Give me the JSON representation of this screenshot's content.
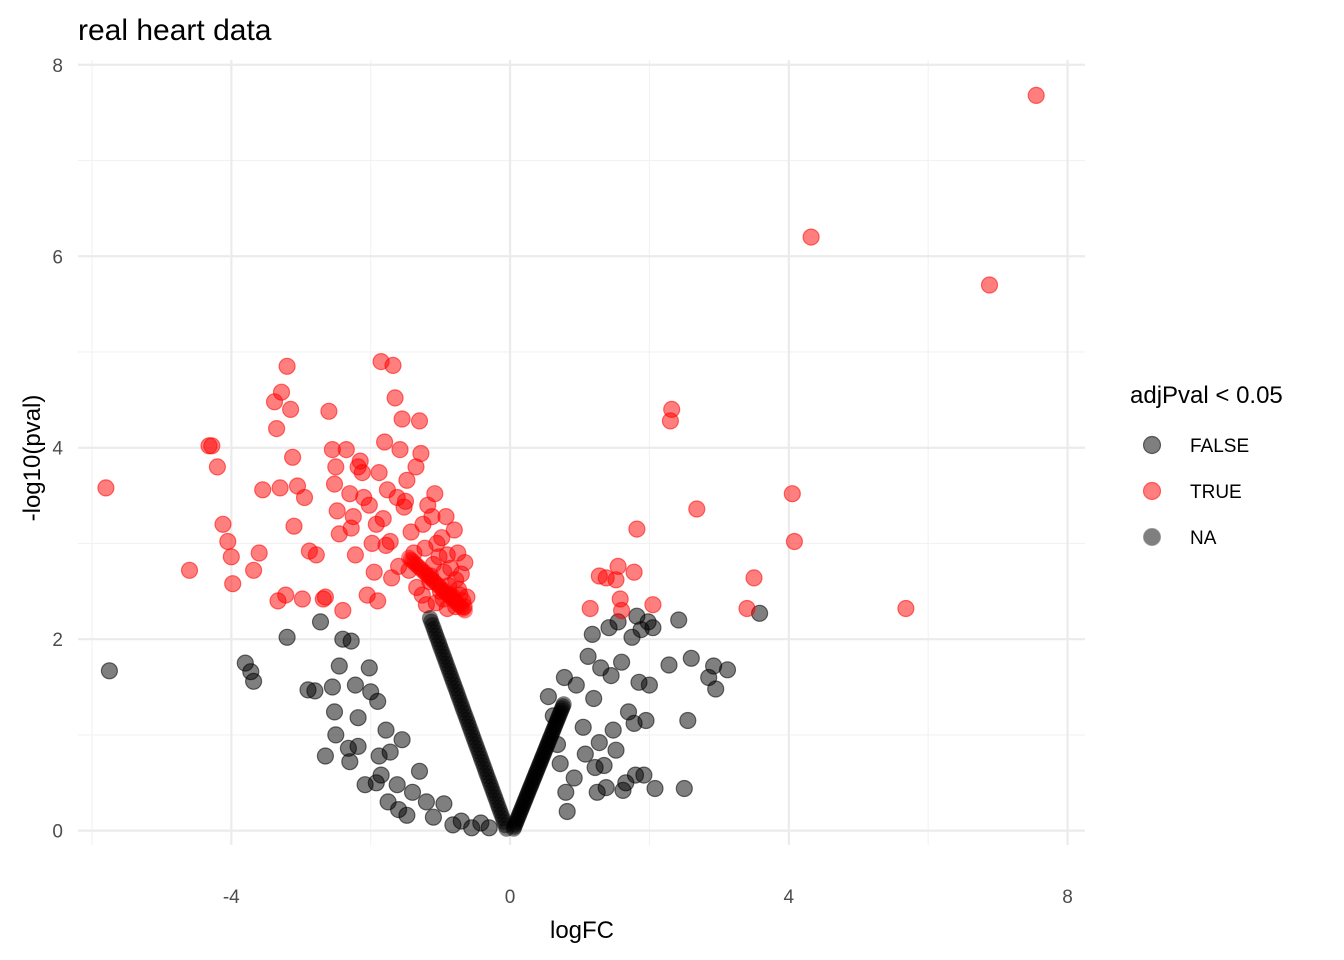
{
  "chart_data": {
    "type": "scatter",
    "title": "real heart data",
    "xlabel": "logFC",
    "ylabel": "-log10(pval)",
    "xlim": [
      -6.2,
      8.25
    ],
    "ylim": [
      -0.15,
      8.05
    ],
    "x_ticks": [
      -4,
      0,
      4,
      8
    ],
    "x_tick_labels": [
      "-4",
      "0",
      "4",
      "8"
    ],
    "y_ticks": [
      0,
      2,
      4,
      6,
      8
    ],
    "y_tick_labels": [
      "0",
      "2",
      "4",
      "6",
      "8"
    ],
    "grid": true,
    "legend": {
      "title": "adjPval < 0.05",
      "position": "right",
      "entries": [
        {
          "label": "FALSE",
          "color": "#000000"
        },
        {
          "label": "TRUE",
          "color": "#ff0000"
        },
        {
          "label": "NA",
          "color": "#7f7f7f"
        }
      ]
    },
    "series": [
      {
        "name": "FALSE",
        "color": "#000000",
        "opacity": 0.5,
        "points": [
          [
            -5.75,
            1.67
          ],
          [
            -3.8,
            1.75
          ],
          [
            -3.72,
            1.66
          ],
          [
            -3.68,
            1.56
          ],
          [
            -3.2,
            2.02
          ],
          [
            -2.9,
            1.47
          ],
          [
            -2.8,
            1.46
          ],
          [
            -2.72,
            2.18
          ],
          [
            -2.65,
            0.78
          ],
          [
            -2.55,
            1.5
          ],
          [
            -2.52,
            1.24
          ],
          [
            -2.5,
            1.0
          ],
          [
            -2.45,
            1.72
          ],
          [
            -2.4,
            2.0
          ],
          [
            -2.32,
            0.86
          ],
          [
            -2.3,
            0.72
          ],
          [
            -2.28,
            1.98
          ],
          [
            -2.22,
            1.52
          ],
          [
            -2.18,
            0.88
          ],
          [
            -2.18,
            1.18
          ],
          [
            -2.08,
            0.48
          ],
          [
            -2.02,
            1.7
          ],
          [
            -2.0,
            1.45
          ],
          [
            -1.92,
            0.5
          ],
          [
            -1.9,
            1.35
          ],
          [
            -1.88,
            0.78
          ],
          [
            -1.85,
            0.58
          ],
          [
            -1.78,
            1.05
          ],
          [
            -1.75,
            0.3
          ],
          [
            -1.72,
            0.82
          ],
          [
            -1.62,
            0.48
          ],
          [
            -1.6,
            0.22
          ],
          [
            -1.55,
            0.95
          ],
          [
            -1.48,
            0.16
          ],
          [
            -1.4,
            0.4
          ],
          [
            -1.3,
            0.62
          ],
          [
            -1.2,
            0.3
          ],
          [
            -1.1,
            0.14
          ],
          [
            -0.95,
            0.28
          ],
          [
            -0.82,
            0.06
          ],
          [
            -0.7,
            0.1
          ],
          [
            -0.55,
            0.03
          ],
          [
            -0.42,
            0.08
          ],
          [
            -0.3,
            0.03
          ],
          [
            0.55,
            1.4
          ],
          [
            0.62,
            1.2
          ],
          [
            0.68,
            0.9
          ],
          [
            0.72,
            0.7
          ],
          [
            0.78,
            1.6
          ],
          [
            0.8,
            0.4
          ],
          [
            0.82,
            0.2
          ],
          [
            0.92,
            0.55
          ],
          [
            0.95,
            1.52
          ],
          [
            1.05,
            1.08
          ],
          [
            1.08,
            0.8
          ],
          [
            1.12,
            1.82
          ],
          [
            1.18,
            2.05
          ],
          [
            1.2,
            1.38
          ],
          [
            1.22,
            0.66
          ],
          [
            1.25,
            0.4
          ],
          [
            1.28,
            0.92
          ],
          [
            1.3,
            1.7
          ],
          [
            1.35,
            0.68
          ],
          [
            1.38,
            0.45
          ],
          [
            1.42,
            2.12
          ],
          [
            1.45,
            1.62
          ],
          [
            1.48,
            1.05
          ],
          [
            1.52,
            0.84
          ],
          [
            1.55,
            2.18
          ],
          [
            1.6,
            1.76
          ],
          [
            1.62,
            0.42
          ],
          [
            1.66,
            0.5
          ],
          [
            1.7,
            1.24
          ],
          [
            1.75,
            2.02
          ],
          [
            1.78,
            1.12
          ],
          [
            1.8,
            0.58
          ],
          [
            1.82,
            2.24
          ],
          [
            1.85,
            1.55
          ],
          [
            1.88,
            2.1
          ],
          [
            1.92,
            0.58
          ],
          [
            1.95,
            1.15
          ],
          [
            1.98,
            2.18
          ],
          [
            2.0,
            1.52
          ],
          [
            2.05,
            2.12
          ],
          [
            2.08,
            0.44
          ],
          [
            2.28,
            1.73
          ],
          [
            2.42,
            2.2
          ],
          [
            2.5,
            0.44
          ],
          [
            2.55,
            1.15
          ],
          [
            2.6,
            1.8
          ],
          [
            2.85,
            1.6
          ],
          [
            2.92,
            1.72
          ],
          [
            2.95,
            1.48
          ],
          [
            3.12,
            1.68
          ],
          [
            3.58,
            2.27
          ]
        ]
      },
      {
        "name": "TRUE",
        "color": "#ff0000",
        "opacity": 0.5,
        "points": [
          [
            -5.8,
            3.58
          ],
          [
            -4.6,
            2.72
          ],
          [
            -4.32,
            4.02
          ],
          [
            -4.28,
            4.02
          ],
          [
            -4.2,
            3.8
          ],
          [
            -4.12,
            3.2
          ],
          [
            -4.05,
            3.02
          ],
          [
            -4.0,
            2.86
          ],
          [
            -3.98,
            2.58
          ],
          [
            -3.68,
            2.72
          ],
          [
            -3.6,
            2.9
          ],
          [
            -3.55,
            3.56
          ],
          [
            -3.38,
            4.48
          ],
          [
            -3.35,
            4.2
          ],
          [
            -3.33,
            2.4
          ],
          [
            -3.3,
            3.58
          ],
          [
            -3.28,
            4.58
          ],
          [
            -3.22,
            2.46
          ],
          [
            -3.2,
            4.85
          ],
          [
            -3.15,
            4.4
          ],
          [
            -3.12,
            3.9
          ],
          [
            -3.1,
            3.18
          ],
          [
            -3.05,
            3.6
          ],
          [
            -2.98,
            2.42
          ],
          [
            -2.95,
            3.48
          ],
          [
            -2.88,
            2.92
          ],
          [
            -2.78,
            2.88
          ],
          [
            -2.68,
            2.42
          ],
          [
            -2.65,
            2.44
          ],
          [
            -2.6,
            4.38
          ],
          [
            -2.55,
            3.98
          ],
          [
            -2.52,
            3.62
          ],
          [
            -2.5,
            3.8
          ],
          [
            -2.48,
            3.34
          ],
          [
            -2.45,
            3.1
          ],
          [
            -2.4,
            2.3
          ],
          [
            -2.35,
            3.98
          ],
          [
            -2.3,
            3.52
          ],
          [
            -2.28,
            3.16
          ],
          [
            -2.25,
            3.28
          ],
          [
            -2.22,
            2.88
          ],
          [
            -2.18,
            3.8
          ],
          [
            -2.15,
            3.86
          ],
          [
            -2.12,
            3.74
          ],
          [
            -2.1,
            3.48
          ],
          [
            -2.05,
            2.46
          ],
          [
            -2.02,
            3.4
          ],
          [
            -1.98,
            3.0
          ],
          [
            -1.95,
            2.7
          ],
          [
            -1.92,
            3.2
          ],
          [
            -1.9,
            2.4
          ],
          [
            -1.88,
            3.74
          ],
          [
            -1.85,
            4.9
          ],
          [
            -1.82,
            3.26
          ],
          [
            -1.8,
            4.06
          ],
          [
            -1.78,
            2.98
          ],
          [
            -1.76,
            3.56
          ],
          [
            -1.72,
            3.02
          ],
          [
            -1.7,
            2.64
          ],
          [
            -1.68,
            4.86
          ],
          [
            -1.65,
            4.52
          ],
          [
            -1.62,
            3.48
          ],
          [
            -1.6,
            2.76
          ],
          [
            -1.58,
            3.98
          ],
          [
            -1.55,
            4.3
          ],
          [
            -1.52,
            3.38
          ],
          [
            -1.5,
            3.44
          ],
          [
            -1.48,
            3.66
          ],
          [
            -1.45,
            2.72
          ],
          [
            -1.42,
            3.12
          ],
          [
            -1.38,
            2.9
          ],
          [
            -1.35,
            3.8
          ],
          [
            -1.3,
            4.28
          ],
          [
            -1.28,
            3.94
          ],
          [
            -1.25,
            3.2
          ],
          [
            -1.22,
            2.95
          ],
          [
            -1.18,
            3.4
          ],
          [
            -1.15,
            2.6
          ],
          [
            -1.12,
            3.28
          ],
          [
            -1.1,
            2.78
          ],
          [
            -1.08,
            3.52
          ],
          [
            -1.05,
            3.0
          ],
          [
            -1.02,
            2.86
          ],
          [
            -1.0,
            2.5
          ],
          [
            -0.98,
            3.06
          ],
          [
            -0.95,
            2.7
          ],
          [
            -0.92,
            3.28
          ],
          [
            -0.9,
            2.88
          ],
          [
            -0.88,
            2.56
          ],
          [
            -0.85,
            2.74
          ],
          [
            -0.82,
            2.44
          ],
          [
            -0.8,
            3.14
          ],
          [
            -0.78,
            2.62
          ],
          [
            -0.75,
            2.9
          ],
          [
            -0.72,
            2.46
          ],
          [
            -0.7,
            2.68
          ],
          [
            -0.68,
            2.4
          ],
          [
            -0.66,
            2.34
          ],
          [
            -0.65,
            2.8
          ],
          [
            -1.34,
            2.54
          ],
          [
            -1.26,
            2.46
          ],
          [
            -1.2,
            2.36
          ],
          [
            -1.14,
            2.66
          ],
          [
            -1.06,
            2.38
          ],
          [
            -0.96,
            2.42
          ],
          [
            -0.9,
            2.32
          ],
          [
            -0.86,
            2.46
          ],
          [
            -0.78,
            2.34
          ],
          [
            -0.74,
            2.52
          ],
          [
            -0.62,
            2.44
          ],
          [
            1.15,
            2.32
          ],
          [
            1.28,
            2.66
          ],
          [
            1.38,
            2.64
          ],
          [
            1.52,
            2.62
          ],
          [
            1.55,
            2.76
          ],
          [
            1.58,
            2.42
          ],
          [
            1.6,
            2.3
          ],
          [
            1.78,
            2.7
          ],
          [
            1.82,
            3.15
          ],
          [
            2.05,
            2.36
          ],
          [
            2.3,
            4.28
          ],
          [
            2.32,
            4.4
          ],
          [
            2.68,
            3.36
          ],
          [
            3.4,
            2.32
          ],
          [
            3.5,
            2.64
          ],
          [
            4.05,
            3.52
          ],
          [
            4.08,
            3.02
          ],
          [
            4.32,
            6.2
          ],
          [
            5.68,
            2.32
          ],
          [
            6.88,
            5.7
          ],
          [
            7.55,
            7.68
          ]
        ]
      }
    ]
  }
}
